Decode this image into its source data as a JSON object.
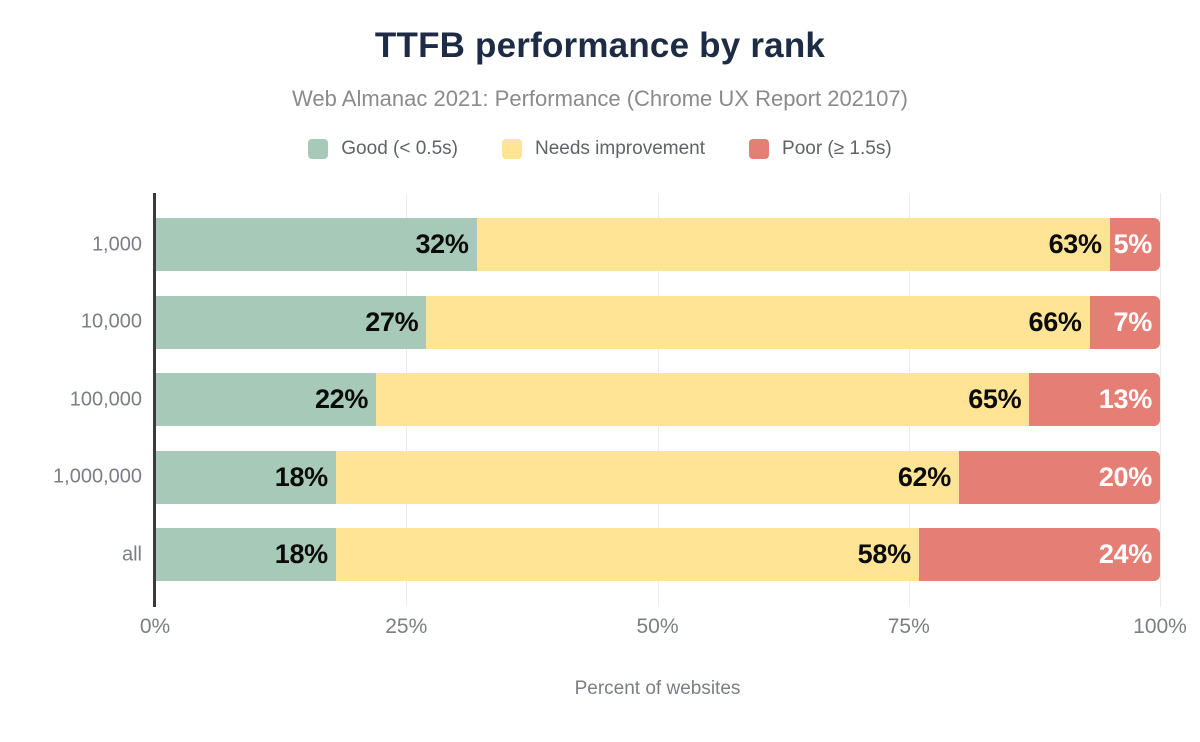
{
  "title": "TTFB performance by rank",
  "subtitle": "Web Almanac 2021: Performance (Chrome UX Report 202107)",
  "xlabel": "Percent of websites",
  "colors": {
    "title_navy": "#1e2b44",
    "axis": "#3a3b3d",
    "gridline": "#ebebeb",
    "tick_text": "#7b7e85"
  },
  "chart_data": {
    "type": "bar",
    "orientation": "horizontal-stacked",
    "categories": [
      "1,000",
      "10,000",
      "100,000",
      "1,000,000",
      "all"
    ],
    "series": [
      {
        "name": "Good (< 0.5s)",
        "color": "#a7c9b8",
        "label_color": "#0b0b0b",
        "values": [
          32,
          27,
          22,
          18,
          18
        ]
      },
      {
        "name": "Needs improvement",
        "color": "#ffe496",
        "label_color": "#0b0b0b",
        "values": [
          63,
          66,
          65,
          62,
          58
        ]
      },
      {
        "name": "Poor (≥ 1.5s)",
        "color": "#e57e74",
        "label_color": "#ffffff",
        "values": [
          5,
          7,
          13,
          20,
          24
        ]
      }
    ],
    "value_suffix": "%",
    "xlim": [
      0,
      100
    ],
    "x_ticks": [
      "0%",
      "25%",
      "50%",
      "75%",
      "100%"
    ],
    "grid": "vertical",
    "legend_position": "top",
    "title": "TTFB performance by rank",
    "xlabel": "Percent of websites",
    "ylabel": ""
  }
}
